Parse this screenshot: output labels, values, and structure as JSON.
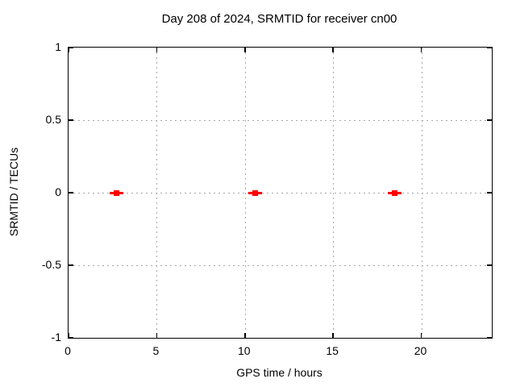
{
  "figure": {
    "title": "Day 208 of 2024, SRMTID for receiver cn00",
    "xlabel": "GPS time / hours",
    "ylabel": "SRMTID / TECUs"
  },
  "chart_data": {
    "type": "scatter",
    "title": "Day 208 of 2024, SRMTID for receiver cn00",
    "xlabel": "GPS time / hours",
    "ylabel": "SRMTID / TECUs",
    "xlim": [
      0,
      24
    ],
    "ylim": [
      -1,
      1
    ],
    "xticks": [
      0,
      5,
      10,
      15,
      20
    ],
    "xtick_labels": [
      "0",
      "5",
      "10",
      "15",
      "20"
    ],
    "yticks": [
      1,
      0.5,
      0,
      -0.5,
      -1
    ],
    "ytick_labels": [
      "1",
      "0.5",
      "0",
      "-0.5",
      "-1"
    ],
    "grid": true,
    "grid_style": "dotted",
    "legend": false,
    "series": [
      {
        "name": "SRMTID",
        "marker": "filled-square-with-horizontal-bar",
        "color": "#ff0000",
        "points": [
          {
            "x": 2.74,
            "y": 0
          },
          {
            "x": 10.56,
            "y": 0
          },
          {
            "x": 18.47,
            "y": 0
          }
        ]
      }
    ],
    "colors": {
      "background": "#ffffff",
      "border": "#000000",
      "grid": "#a8a8a8",
      "text": "#000000",
      "marker": "#ff0000"
    }
  }
}
